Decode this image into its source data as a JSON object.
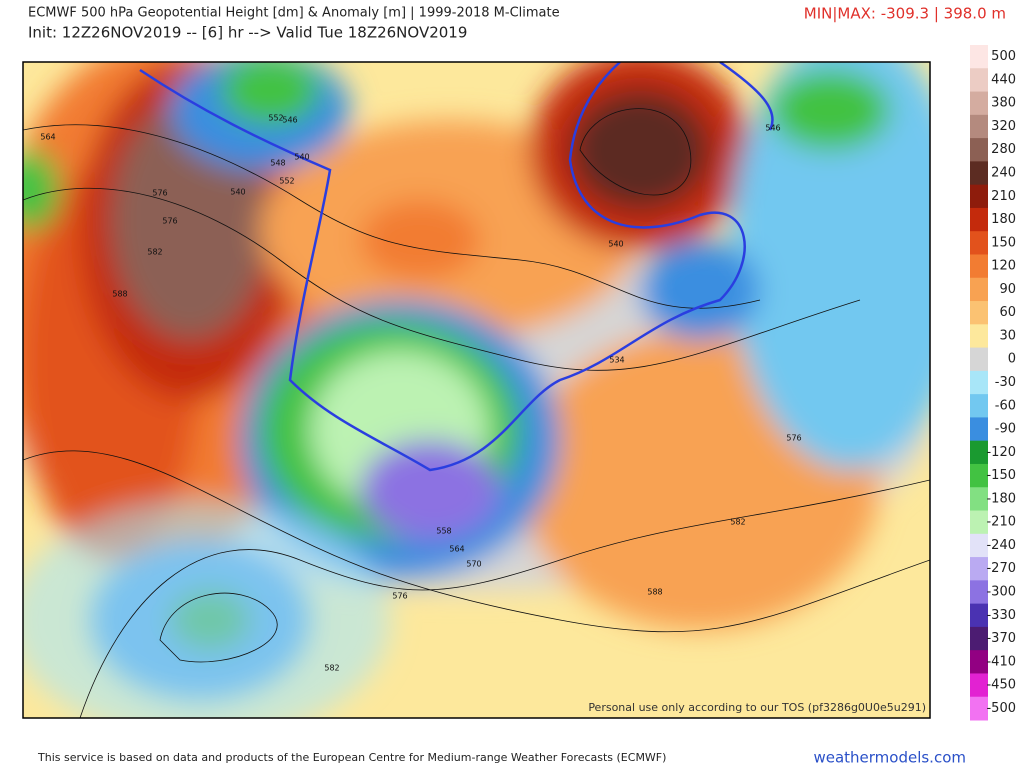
{
  "header": {
    "title": "ECMWF 500 hPa Geopotential Height [dm] & Anomaly [m] | 1999-2018 M-Climate",
    "subtitle": "Init: 12Z26NOV2019 -- [6] hr --> Valid Tue 18Z26NOV2019",
    "minmax": "MIN|MAX: -309.3 | 398.0 m"
  },
  "colorbar": {
    "labels": [
      500,
      440,
      380,
      320,
      280,
      240,
      210,
      180,
      150,
      120,
      90,
      60,
      30,
      0,
      -30,
      -60,
      -90,
      -120,
      -150,
      -180,
      -210,
      -240,
      -270,
      -300,
      -330,
      -370,
      -410,
      -450,
      -500
    ],
    "colors": [
      "#fde6e4",
      "#ecccc4",
      "#d4aca0",
      "#b48a7e",
      "#8c6054",
      "#5c2c22",
      "#8e1c0c",
      "#c42a0c",
      "#e2521c",
      "#f27c32",
      "#f8a252",
      "#fbc272",
      "#fde89c",
      "#d6d6d6",
      "#a8e6f8",
      "#72c8f0",
      "#3a8ee0",
      "#1a9a30",
      "#42c242",
      "#82e082",
      "#bcf2b2",
      "#e2e2f8",
      "#baaaf2",
      "#8c72e2",
      "#4a32b2",
      "#4c1c72",
      "#920082",
      "#e222d2",
      "#f272f2"
    ]
  },
  "map": {
    "contour_labels": [
      "564",
      "576",
      "576",
      "582",
      "588",
      "540",
      "548",
      "552",
      "546",
      "540",
      "546",
      "534",
      "576",
      "582",
      "588",
      "558",
      "564",
      "570",
      "576",
      "582",
      "552",
      "540"
    ],
    "watermark": "Personal use only according to our TOS (pf3286g0U0e5u291)"
  },
  "footer": {
    "credit": "This service is based on data and products of the European Centre for Medium-range Weather Forecasts (ECMWF)",
    "site": "weathermodels.com"
  }
}
